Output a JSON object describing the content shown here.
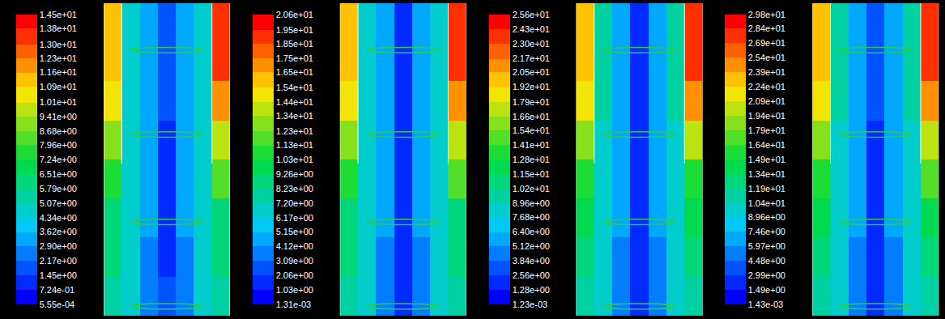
{
  "chart_data": [
    {
      "type": "heatmap",
      "tick_labels": false,
      "colorbar_range": [
        0.000555,
        14.5
      ],
      "colorbar_ticks": [
        {
          "value": 14.5,
          "label": "1.45e+01"
        },
        {
          "value": 13.8,
          "label": "1.38e+01"
        },
        {
          "value": 13.0,
          "label": "1.30e+01"
        },
        {
          "value": 12.3,
          "label": "1.23e+01"
        },
        {
          "value": 11.6,
          "label": "1.16e+01"
        },
        {
          "value": 10.9,
          "label": "1.09e+01"
        },
        {
          "value": 10.1,
          "label": "1.01e+01"
        },
        {
          "value": 9.41,
          "label": "9.41e+00"
        },
        {
          "value": 8.68,
          "label": "8.68e+00"
        },
        {
          "value": 7.96,
          "label": "7.96e+00"
        },
        {
          "value": 7.24,
          "label": "7.24e+00"
        },
        {
          "value": 6.51,
          "label": "6.51e+00"
        },
        {
          "value": 5.79,
          "label": "5.79e+00"
        },
        {
          "value": 5.07,
          "label": "5.07e+00"
        },
        {
          "value": 4.34,
          "label": "4.34e+00"
        },
        {
          "value": 3.62,
          "label": "3.62e+00"
        },
        {
          "value": 2.9,
          "label": "2.90e+00"
        },
        {
          "value": 2.17,
          "label": "2.17e+00"
        },
        {
          "value": 1.45,
          "label": "1.45e+00"
        },
        {
          "value": 0.724,
          "label": "7.24e-01"
        },
        {
          "value": 0.000555,
          "label": "5.55e-04"
        }
      ],
      "cells": [
        [
          11,
          5,
          3.5,
          1.5,
          3.5,
          5,
          13.5
        ],
        [
          11.5,
          5,
          3.5,
          1.5,
          3.5,
          5,
          13
        ],
        [
          10.5,
          5,
          3.5,
          1.5,
          3.5,
          5,
          12
        ],
        [
          9,
          4.5,
          3,
          1,
          3,
          4.5,
          10
        ],
        [
          7.5,
          4.5,
          3,
          1,
          3,
          4.5,
          8
        ],
        [
          6.5,
          4.5,
          3,
          1,
          3,
          4.5,
          6.5
        ],
        [
          6,
          4.5,
          2.5,
          1,
          2.5,
          4.5,
          6
        ],
        [
          5.5,
          4.5,
          2.5,
          1.5,
          2.5,
          4.5,
          5.5
        ]
      ]
    },
    {
      "type": "heatmap",
      "tick_labels": false,
      "colorbar_range": [
        0.00131,
        20.6
      ],
      "colorbar_ticks": [
        {
          "value": 20.6,
          "label": "2.06e+01"
        },
        {
          "value": 19.5,
          "label": "1.95e+01"
        },
        {
          "value": 18.5,
          "label": "1.85e+01"
        },
        {
          "value": 17.5,
          "label": "1.75e+01"
        },
        {
          "value": 16.5,
          "label": "1.65e+01"
        },
        {
          "value": 15.4,
          "label": "1.54e+01"
        },
        {
          "value": 14.4,
          "label": "1.44e+01"
        },
        {
          "value": 13.4,
          "label": "1.34e+01"
        },
        {
          "value": 12.3,
          "label": "1.23e+01"
        },
        {
          "value": 11.3,
          "label": "1.13e+01"
        },
        {
          "value": 10.3,
          "label": "1.03e+01"
        },
        {
          "value": 9.26,
          "label": "9.26e+00"
        },
        {
          "value": 8.23,
          "label": "8.23e+00"
        },
        {
          "value": 7.2,
          "label": "7.20e+00"
        },
        {
          "value": 6.17,
          "label": "6.17e+00"
        },
        {
          "value": 5.15,
          "label": "5.15e+00"
        },
        {
          "value": 4.12,
          "label": "4.12e+00"
        },
        {
          "value": 3.09,
          "label": "3.09e+00"
        },
        {
          "value": 2.06,
          "label": "2.06e+00"
        },
        {
          "value": 1.03,
          "label": "1.03e+00"
        },
        {
          "value": 0.00131,
          "label": "1.31e-03"
        }
      ],
      "cells": [
        [
          15.5,
          7,
          5,
          2,
          5,
          7,
          19
        ],
        [
          16,
          7,
          5,
          2,
          5,
          7,
          18.5
        ],
        [
          15,
          7,
          5,
          2,
          5,
          7,
          17
        ],
        [
          13,
          6.5,
          4.5,
          1.5,
          4.5,
          6.5,
          14
        ],
        [
          10.5,
          6.5,
          4.5,
          1.5,
          4.5,
          6.5,
          11.5
        ],
        [
          9,
          6.5,
          4.5,
          1.5,
          4.5,
          6.5,
          9
        ],
        [
          8.5,
          6.5,
          3.5,
          1.5,
          3.5,
          6.5,
          8.5
        ],
        [
          8,
          6.5,
          3.5,
          2,
          3.5,
          6.5,
          8
        ]
      ]
    },
    {
      "type": "heatmap",
      "tick_labels": false,
      "colorbar_range": [
        0.00123,
        25.6
      ],
      "colorbar_ticks": [
        {
          "value": 25.6,
          "label": "2.56e+01"
        },
        {
          "value": 24.3,
          "label": "2.43e+01"
        },
        {
          "value": 23.0,
          "label": "2.30e+01"
        },
        {
          "value": 21.7,
          "label": "2.17e+01"
        },
        {
          "value": 20.5,
          "label": "2.05e+01"
        },
        {
          "value": 19.2,
          "label": "1.92e+01"
        },
        {
          "value": 17.9,
          "label": "1.79e+01"
        },
        {
          "value": 16.6,
          "label": "1.66e+01"
        },
        {
          "value": 15.4,
          "label": "1.54e+01"
        },
        {
          "value": 14.1,
          "label": "1.41e+01"
        },
        {
          "value": 12.8,
          "label": "1.28e+01"
        },
        {
          "value": 11.5,
          "label": "1.15e+01"
        },
        {
          "value": 10.2,
          "label": "1.02e+01"
        },
        {
          "value": 8.96,
          "label": "8.96e+00"
        },
        {
          "value": 7.68,
          "label": "7.68e+00"
        },
        {
          "value": 6.4,
          "label": "6.40e+00"
        },
        {
          "value": 5.12,
          "label": "5.12e+00"
        },
        {
          "value": 3.84,
          "label": "3.84e+00"
        },
        {
          "value": 2.56,
          "label": "2.56e+00"
        },
        {
          "value": 1.28,
          "label": "1.28e+00"
        },
        {
          "value": 0.00123,
          "label": "1.23e-03"
        }
      ],
      "cells": [
        [
          19.5,
          9,
          6,
          2.5,
          6,
          9,
          24
        ],
        [
          20,
          9,
          6,
          2.5,
          6,
          9,
          23
        ],
        [
          18.5,
          9,
          6,
          2.5,
          6,
          9,
          21
        ],
        [
          16,
          8,
          5.5,
          2,
          5.5,
          8,
          17.5
        ],
        [
          13,
          8,
          5.5,
          2,
          5.5,
          8,
          14
        ],
        [
          11.5,
          8,
          5.5,
          2,
          5.5,
          8,
          11.5
        ],
        [
          10.5,
          8,
          4.5,
          2,
          4.5,
          8,
          10.5
        ],
        [
          10,
          8,
          4.5,
          2.5,
          4.5,
          8,
          10
        ]
      ]
    },
    {
      "type": "heatmap",
      "tick_labels": false,
      "colorbar_range": [
        0.00143,
        29.8
      ],
      "colorbar_ticks": [
        {
          "value": 29.8,
          "label": "2.98e+01"
        },
        {
          "value": 28.4,
          "label": "2.84e+01"
        },
        {
          "value": 26.9,
          "label": "2.69e+01"
        },
        {
          "value": 25.4,
          "label": "2.54e+01"
        },
        {
          "value": 23.9,
          "label": "2.39e+01"
        },
        {
          "value": 22.4,
          "label": "2.24e+01"
        },
        {
          "value": 20.9,
          "label": "2.09e+01"
        },
        {
          "value": 19.4,
          "label": "1.94e+01"
        },
        {
          "value": 17.9,
          "label": "1.79e+01"
        },
        {
          "value": 16.4,
          "label": "1.64e+01"
        },
        {
          "value": 14.9,
          "label": "1.49e+01"
        },
        {
          "value": 13.4,
          "label": "1.34e+01"
        },
        {
          "value": 11.9,
          "label": "1.19e+01"
        },
        {
          "value": 10.4,
          "label": "1.04e+01"
        },
        {
          "value": 8.96,
          "label": "8.96e+00"
        },
        {
          "value": 7.46,
          "label": "7.46e+00"
        },
        {
          "value": 5.97,
          "label": "5.97e+00"
        },
        {
          "value": 4.48,
          "label": "4.48e+00"
        },
        {
          "value": 2.99,
          "label": "2.99e+00"
        },
        {
          "value": 1.49,
          "label": "1.49e+00"
        },
        {
          "value": 0.00143,
          "label": "1.43e-03"
        }
      ],
      "cells": [
        [
          22.5,
          10.5,
          7,
          3,
          7,
          10.5,
          28
        ],
        [
          23.5,
          10.5,
          7,
          3,
          7,
          10.5,
          27
        ],
        [
          21.5,
          10.5,
          7,
          3,
          7,
          10.5,
          24.5
        ],
        [
          18.5,
          9.5,
          6,
          2,
          6,
          9.5,
          20.5
        ],
        [
          15.5,
          9.5,
          6,
          2,
          6,
          9.5,
          16.5
        ],
        [
          13.5,
          9.5,
          6,
          2,
          6,
          9.5,
          13.5
        ],
        [
          12.5,
          9.5,
          5,
          2,
          5,
          9.5,
          12.5
        ],
        [
          11.5,
          9.5,
          5,
          2.5,
          5,
          9.5,
          11.5
        ]
      ]
    }
  ]
}
